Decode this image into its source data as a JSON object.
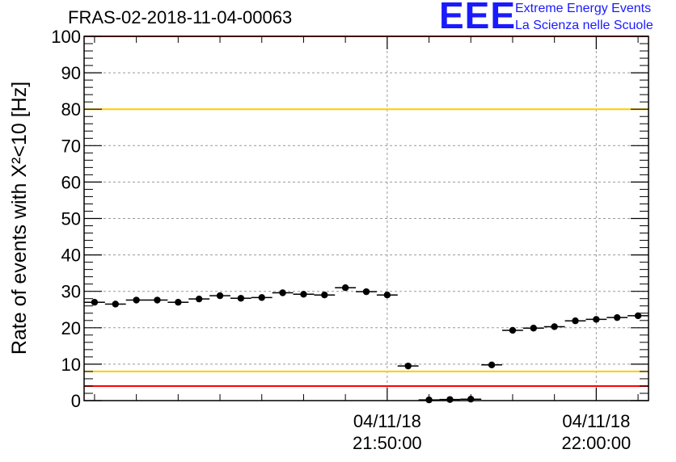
{
  "title": "FRAS-02-2018-11-04-00063",
  "logo": {
    "mark": "EEE",
    "line1": "Extreme Energy Events",
    "line2": "La Scienza nelle Scuole",
    "color": "#1a1aff"
  },
  "chart_data": {
    "type": "scatter",
    "ylabel": "Rate of events with X²<10 [Hz]",
    "ylim": [
      0,
      100
    ],
    "yticks": [
      0,
      10,
      20,
      30,
      40,
      50,
      60,
      70,
      80,
      90,
      100
    ],
    "xlim_minutes": [
      -54.5,
      -27.5
    ],
    "xticks": [
      {
        "minutes": -40,
        "date": "04/11/18",
        "time": "21:50:00"
      },
      {
        "minutes": -30,
        "date": "04/11/18",
        "time": "22:00:00"
      }
    ],
    "grid": true,
    "reference_lines": [
      {
        "y": 100,
        "color": "#ff0000"
      },
      {
        "y": 80,
        "color": "#ffcc00"
      },
      {
        "y": 8,
        "color": "#ffcc00"
      },
      {
        "y": 4,
        "color": "#ff0000"
      }
    ],
    "series": [
      {
        "marker_color": "#000000",
        "x_minutes": [
          -54,
          -53,
          -52,
          -51,
          -50,
          -49,
          -48,
          -47,
          -46,
          -45,
          -44,
          -43,
          -42,
          -41,
          -40,
          -39,
          -38,
          -37,
          -36,
          -35,
          -34,
          -33,
          -32,
          -31,
          -30,
          -29,
          -28
        ],
        "values": [
          27.0,
          26.5,
          27.6,
          27.6,
          27.0,
          27.9,
          28.8,
          28.1,
          28.3,
          29.6,
          29.2,
          29.0,
          31.0,
          29.9,
          29.0,
          9.5,
          0.2,
          0.3,
          0.4,
          9.8,
          19.3,
          19.9,
          20.3,
          21.9,
          22.3,
          22.8,
          23.3
        ]
      }
    ]
  }
}
